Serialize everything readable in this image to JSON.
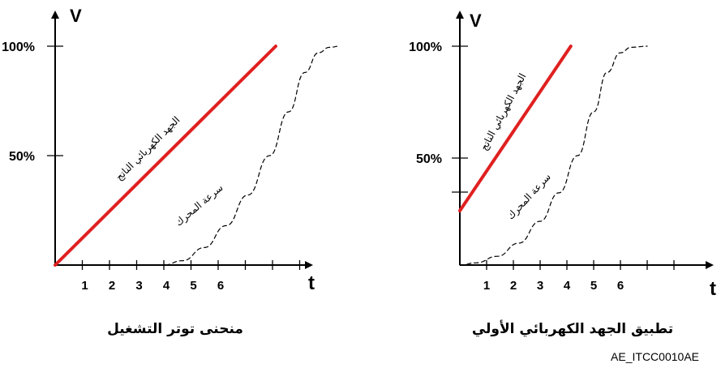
{
  "figure_code": "AE_ITCC0010AE",
  "chart_data": [
    {
      "type": "line",
      "caption": "منحنى توتر التشغيل",
      "x_axis_label": "t",
      "y_axis_label": "V",
      "x_ticks": [
        "1",
        "2",
        "3",
        "4",
        "5",
        "6"
      ],
      "y_ticks": [
        "50%",
        "100%"
      ],
      "colors": {
        "voltage": "#e02020",
        "speed": "#000000"
      },
      "series": [
        {
          "name": "الجهد الكهربائي الناتج",
          "style": "solid",
          "x": [
            -1,
            7.5
          ],
          "y": [
            0,
            100
          ]
        },
        {
          "name": "سرعة المحرك",
          "style": "dashed",
          "x": [
            1.5,
            2.5,
            3.2,
            4,
            4.8,
            5.6,
            6.4,
            7.1,
            7.7,
            8.2,
            8.6,
            9
          ],
          "y": [
            0,
            0,
            2,
            8,
            18,
            32,
            50,
            70,
            88,
            97,
            99.5,
            100
          ]
        }
      ]
    },
    {
      "type": "line",
      "caption": "تطبيق الجهد الكهربائي الأولي",
      "x_axis_label": "t",
      "y_axis_label": "V",
      "x_ticks": [
        "1",
        "2",
        "3",
        "4",
        "5",
        "6"
      ],
      "y_ticks": [
        "50%",
        "100%"
      ],
      "colors": {
        "voltage": "#e02020",
        "speed": "#000000"
      },
      "series": [
        {
          "name": "الجهد الكهربائي الناتج",
          "style": "solid",
          "x": [
            0,
            4
          ],
          "y": [
            25,
            100
          ]
        },
        {
          "name": "سرعة المحرك",
          "style": "dashed",
          "x": [
            0,
            0.6,
            1.4,
            2.2,
            3,
            3.7,
            4.4,
            5,
            5.5,
            6,
            6.4,
            7
          ],
          "y": [
            0,
            1,
            4,
            10,
            20,
            33,
            50,
            70,
            88,
            97,
            99.5,
            100
          ]
        }
      ]
    }
  ]
}
